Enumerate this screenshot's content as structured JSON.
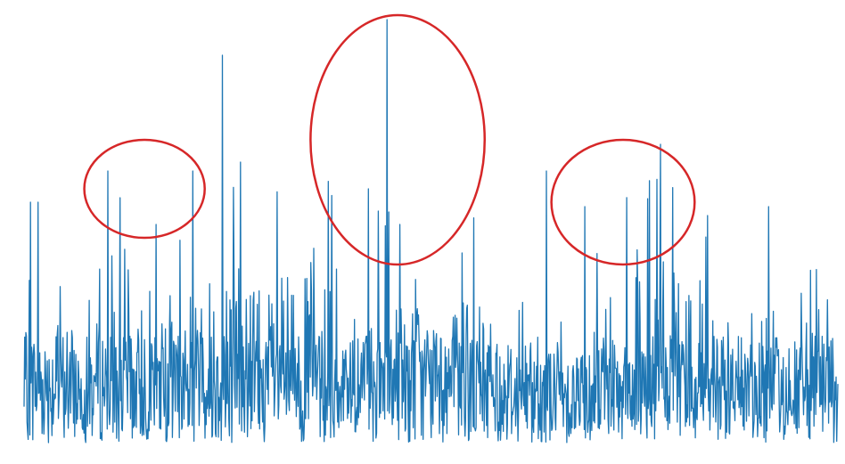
{
  "chart_data": {
    "type": "line",
    "title": "",
    "xlabel": "",
    "ylabel": "",
    "axes_visible": false,
    "grid": false,
    "legend": "none",
    "series": [
      {
        "color": "#1f77b4",
        "baseline_low": 0.03,
        "baseline_high": 0.22,
        "segments": [
          {
            "t0": 0.0,
            "t1": 0.18,
            "level": 0.45
          },
          {
            "t0": 0.18,
            "t1": 0.38,
            "level": 0.62
          },
          {
            "t0": 0.38,
            "t1": 0.58,
            "level": 0.52
          },
          {
            "t0": 0.58,
            "t1": 0.7,
            "level": 0.35
          },
          {
            "t0": 0.7,
            "t1": 0.85,
            "level": 0.6
          },
          {
            "t0": 0.85,
            "t1": 1.0,
            "level": 0.4
          }
        ],
        "spikes": [
          {
            "x": 0.008,
            "y": 0.57
          },
          {
            "x": 0.017,
            "y": 0.57
          },
          {
            "x": 0.103,
            "y": 0.64
          },
          {
            "x": 0.118,
            "y": 0.58
          },
          {
            "x": 0.162,
            "y": 0.52
          },
          {
            "x": 0.207,
            "y": 0.64
          },
          {
            "x": 0.244,
            "y": 0.9
          },
          {
            "x": 0.266,
            "y": 0.66
          },
          {
            "x": 0.423,
            "y": 0.6
          },
          {
            "x": 0.446,
            "y": 0.98
          },
          {
            "x": 0.462,
            "y": 0.52
          },
          {
            "x": 0.642,
            "y": 0.64
          },
          {
            "x": 0.689,
            "y": 0.56
          },
          {
            "x": 0.782,
            "y": 0.7
          },
          {
            "x": 0.84,
            "y": 0.54
          },
          {
            "x": 0.915,
            "y": 0.56
          }
        ]
      }
    ],
    "annotations": [
      {
        "shape": "ellipse",
        "color": "#d62728",
        "cx": 0.148,
        "cy": 0.6,
        "rx": 0.074,
        "ry": 0.11
      },
      {
        "shape": "ellipse",
        "color": "#d62728",
        "cx": 0.459,
        "cy": 0.71,
        "rx": 0.107,
        "ry": 0.28
      },
      {
        "shape": "ellipse",
        "color": "#d62728",
        "cx": 0.736,
        "cy": 0.57,
        "rx": 0.088,
        "ry": 0.14
      }
    ]
  }
}
